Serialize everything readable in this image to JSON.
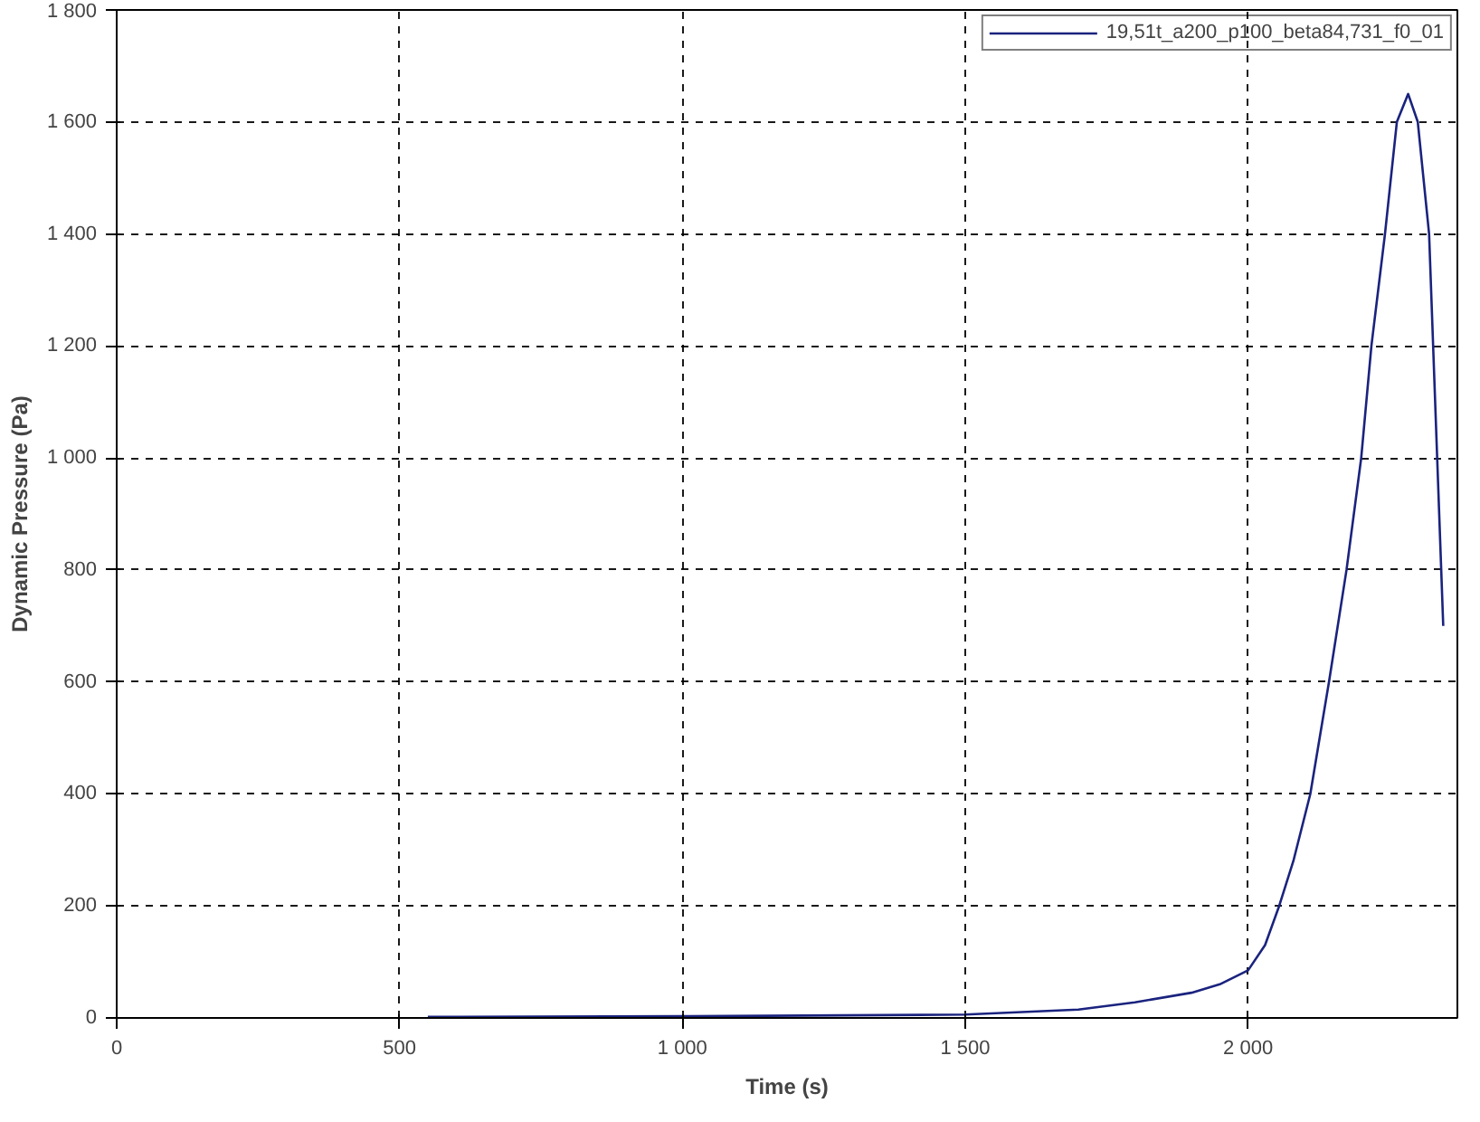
{
  "chart_data": {
    "type": "line",
    "xlabel": "Time (s)",
    "ylabel": "Dynamic Pressure (Pa)",
    "xlim": [
      0,
      2370
    ],
    "ylim": [
      0,
      1800
    ],
    "xticks": [
      0,
      500,
      {
        "value": 1000,
        "label": "1 000"
      },
      {
        "value": 1500,
        "label": "1 500"
      },
      {
        "value": 2000,
        "label": "2 000"
      }
    ],
    "yticks": [
      0,
      200,
      400,
      600,
      800,
      {
        "value": 1000,
        "label": "1 000"
      },
      {
        "value": 1200,
        "label": "1 200"
      },
      {
        "value": 1400,
        "label": "1 400"
      },
      {
        "value": 1600,
        "label": "1 600"
      },
      {
        "value": 1800,
        "label": "1 800"
      }
    ],
    "grid": true,
    "legend": "top right",
    "series": [
      {
        "name": "19,51t_a200_p100_beta84,731_f0_01",
        "color": "#1a237e",
        "x": [
          550,
          1000,
          1500,
          1700,
          1800,
          1900,
          1950,
          2000,
          2030,
          2055,
          2080,
          2110,
          2143,
          2174,
          2200,
          2218,
          2242,
          2263,
          2283,
          2300,
          2320,
          2345
        ],
        "values": [
          2,
          3,
          6,
          15,
          28,
          45,
          60,
          85,
          130,
          200,
          280,
          400,
          600,
          800,
          1000,
          1200,
          1400,
          1600,
          1650,
          1600,
          1400,
          700
        ]
      }
    ]
  }
}
